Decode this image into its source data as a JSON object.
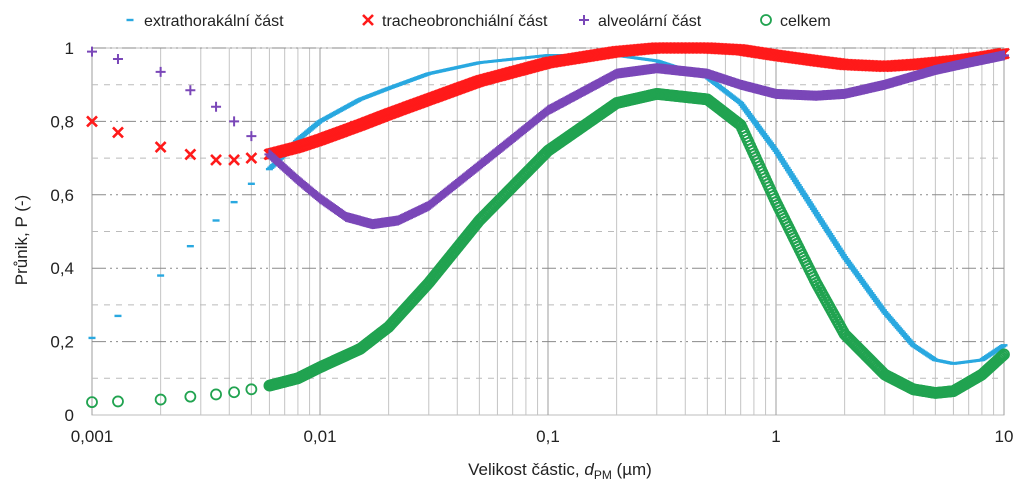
{
  "chart_data": {
    "type": "scatter",
    "title": "",
    "xlabel_main": "Velikost částic, ",
    "xlabel_var": "d",
    "xlabel_sub": "PM",
    "xlabel_unit": " (µm)",
    "ylabel": "Průnik, P (-)",
    "xscale": "log",
    "xlim": [
      0.001,
      10
    ],
    "ylim": [
      0,
      1
    ],
    "grid": true,
    "legend_position": "top",
    "x_ticks": [
      "0,001",
      "0,01",
      "0,1",
      "1",
      "10"
    ],
    "y_ticks": [
      "0",
      "0,2",
      "0,4",
      "0,6",
      "0,8",
      "1"
    ],
    "series": [
      {
        "name": "extrathorakální část",
        "marker": "dash",
        "color": "#29a8e0",
        "points": [
          [
            0.001,
            0.21
          ],
          [
            0.0013,
            0.27
          ],
          [
            0.002,
            0.38
          ],
          [
            0.0027,
            0.46
          ],
          [
            0.0035,
            0.53
          ],
          [
            0.0042,
            0.58
          ],
          [
            0.005,
            0.63
          ],
          [
            0.006,
            0.67
          ],
          [
            0.007,
            0.71
          ],
          [
            0.008,
            0.75
          ],
          [
            0.01,
            0.8
          ],
          [
            0.015,
            0.86
          ],
          [
            0.02,
            0.89
          ],
          [
            0.03,
            0.93
          ],
          [
            0.05,
            0.96
          ],
          [
            0.1,
            0.98
          ],
          [
            0.2,
            0.98
          ],
          [
            0.3,
            0.965
          ],
          [
            0.5,
            0.92
          ],
          [
            0.7,
            0.85
          ],
          [
            1,
            0.72
          ],
          [
            1.5,
            0.55
          ],
          [
            2,
            0.43
          ],
          [
            3,
            0.28
          ],
          [
            4,
            0.19
          ],
          [
            5,
            0.15
          ],
          [
            6,
            0.14
          ],
          [
            8,
            0.15
          ],
          [
            10,
            0.19
          ]
        ]
      },
      {
        "name": "tracheobronchiální část",
        "marker": "x",
        "color": "#ff1a1a",
        "points": [
          [
            0.001,
            0.8
          ],
          [
            0.0013,
            0.77
          ],
          [
            0.002,
            0.73
          ],
          [
            0.0027,
            0.71
          ],
          [
            0.0035,
            0.695
          ],
          [
            0.0042,
            0.695
          ],
          [
            0.005,
            0.7
          ],
          [
            0.006,
            0.71
          ],
          [
            0.008,
            0.73
          ],
          [
            0.01,
            0.75
          ],
          [
            0.015,
            0.79
          ],
          [
            0.02,
            0.82
          ],
          [
            0.03,
            0.86
          ],
          [
            0.05,
            0.91
          ],
          [
            0.1,
            0.96
          ],
          [
            0.2,
            0.99
          ],
          [
            0.3,
            1.0
          ],
          [
            0.5,
            1.0
          ],
          [
            0.7,
            0.995
          ],
          [
            1,
            0.98
          ],
          [
            1.5,
            0.965
          ],
          [
            2,
            0.955
          ],
          [
            3,
            0.95
          ],
          [
            4,
            0.955
          ],
          [
            6,
            0.965
          ],
          [
            8,
            0.975
          ],
          [
            10,
            0.985
          ]
        ]
      },
      {
        "name": "alveolární část",
        "marker": "plus",
        "color": "#7a47b8",
        "points": [
          [
            0.001,
            0.99
          ],
          [
            0.0013,
            0.97
          ],
          [
            0.002,
            0.935
          ],
          [
            0.0027,
            0.885
          ],
          [
            0.0035,
            0.84
          ],
          [
            0.0042,
            0.8
          ],
          [
            0.005,
            0.76
          ],
          [
            0.006,
            0.71
          ],
          [
            0.008,
            0.64
          ],
          [
            0.01,
            0.59
          ],
          [
            0.013,
            0.54
          ],
          [
            0.017,
            0.52
          ],
          [
            0.022,
            0.53
          ],
          [
            0.03,
            0.57
          ],
          [
            0.05,
            0.68
          ],
          [
            0.1,
            0.83
          ],
          [
            0.2,
            0.93
          ],
          [
            0.3,
            0.945
          ],
          [
            0.5,
            0.93
          ],
          [
            0.7,
            0.9
          ],
          [
            1,
            0.875
          ],
          [
            1.5,
            0.87
          ],
          [
            2,
            0.875
          ],
          [
            3,
            0.9
          ],
          [
            5,
            0.94
          ],
          [
            7,
            0.96
          ],
          [
            10,
            0.98
          ]
        ]
      },
      {
        "name": "celkem",
        "marker": "circle",
        "color": "#21a350",
        "points": [
          [
            0.001,
            0.035
          ],
          [
            0.0013,
            0.037
          ],
          [
            0.002,
            0.042
          ],
          [
            0.0027,
            0.05
          ],
          [
            0.0035,
            0.056
          ],
          [
            0.0042,
            0.062
          ],
          [
            0.005,
            0.07
          ],
          [
            0.006,
            0.08
          ],
          [
            0.008,
            0.1
          ],
          [
            0.01,
            0.13
          ],
          [
            0.015,
            0.18
          ],
          [
            0.02,
            0.24
          ],
          [
            0.03,
            0.36
          ],
          [
            0.05,
            0.53
          ],
          [
            0.1,
            0.72
          ],
          [
            0.2,
            0.85
          ],
          [
            0.3,
            0.875
          ],
          [
            0.5,
            0.86
          ],
          [
            0.7,
            0.79
          ],
          [
            1,
            0.58
          ],
          [
            1.5,
            0.36
          ],
          [
            2,
            0.22
          ],
          [
            3,
            0.11
          ],
          [
            4,
            0.07
          ],
          [
            5,
            0.06
          ],
          [
            6,
            0.065
          ],
          [
            8,
            0.11
          ],
          [
            10,
            0.165
          ]
        ]
      }
    ]
  }
}
